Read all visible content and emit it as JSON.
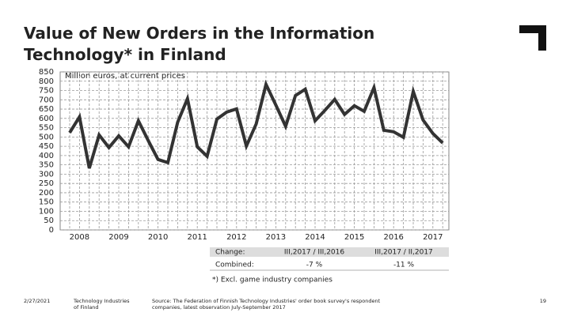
{
  "chart_data": {
    "type": "line",
    "title": [
      "Value of New Orders in the Information",
      "Technology* in Finland"
    ],
    "subtitle": "Million euros, at current prices",
    "categories": [
      "2008",
      null,
      null,
      null,
      "2009",
      null,
      null,
      null,
      "2010",
      null,
      null,
      null,
      "2011",
      null,
      null,
      null,
      "2012",
      null,
      null,
      null,
      "2013",
      null,
      null,
      null,
      "2014",
      null,
      null,
      null,
      "2015",
      null,
      null,
      null,
      "2016",
      null,
      null,
      null,
      "2017",
      null,
      null
    ],
    "values": [
      523,
      608,
      332,
      511,
      443,
      506,
      447,
      587,
      481,
      379,
      362,
      579,
      706,
      447,
      396,
      596,
      634,
      651,
      451,
      570,
      783,
      672,
      557,
      723,
      757,
      587,
      643,
      702,
      621,
      668,
      638,
      766,
      536,
      528,
      498,
      745,
      591,
      519,
      468
    ],
    "color": "#333333",
    "ylim": [
      0,
      850
    ],
    "yticks": [
      0,
      50,
      100,
      150,
      200,
      250,
      300,
      350,
      400,
      450,
      500,
      550,
      600,
      650,
      700,
      750,
      800,
      850
    ],
    "grid": true
  },
  "table": {
    "rows": [
      [
        "Change:",
        "III,2017 / III,2016",
        "III,2017 / II,2017"
      ],
      [
        "Combined:",
        "-7 %",
        "-11 %"
      ]
    ]
  },
  "footnote": "*) Excl. game industry companies",
  "footer": {
    "date": "2/27/2021",
    "organization": [
      "Technology Industries",
      "of Finland"
    ],
    "source": [
      "Source: The Federation of Finnish Technology Industries' order book survey's respondent",
      "companies, latest observation July-September 2017"
    ],
    "page": "19"
  }
}
